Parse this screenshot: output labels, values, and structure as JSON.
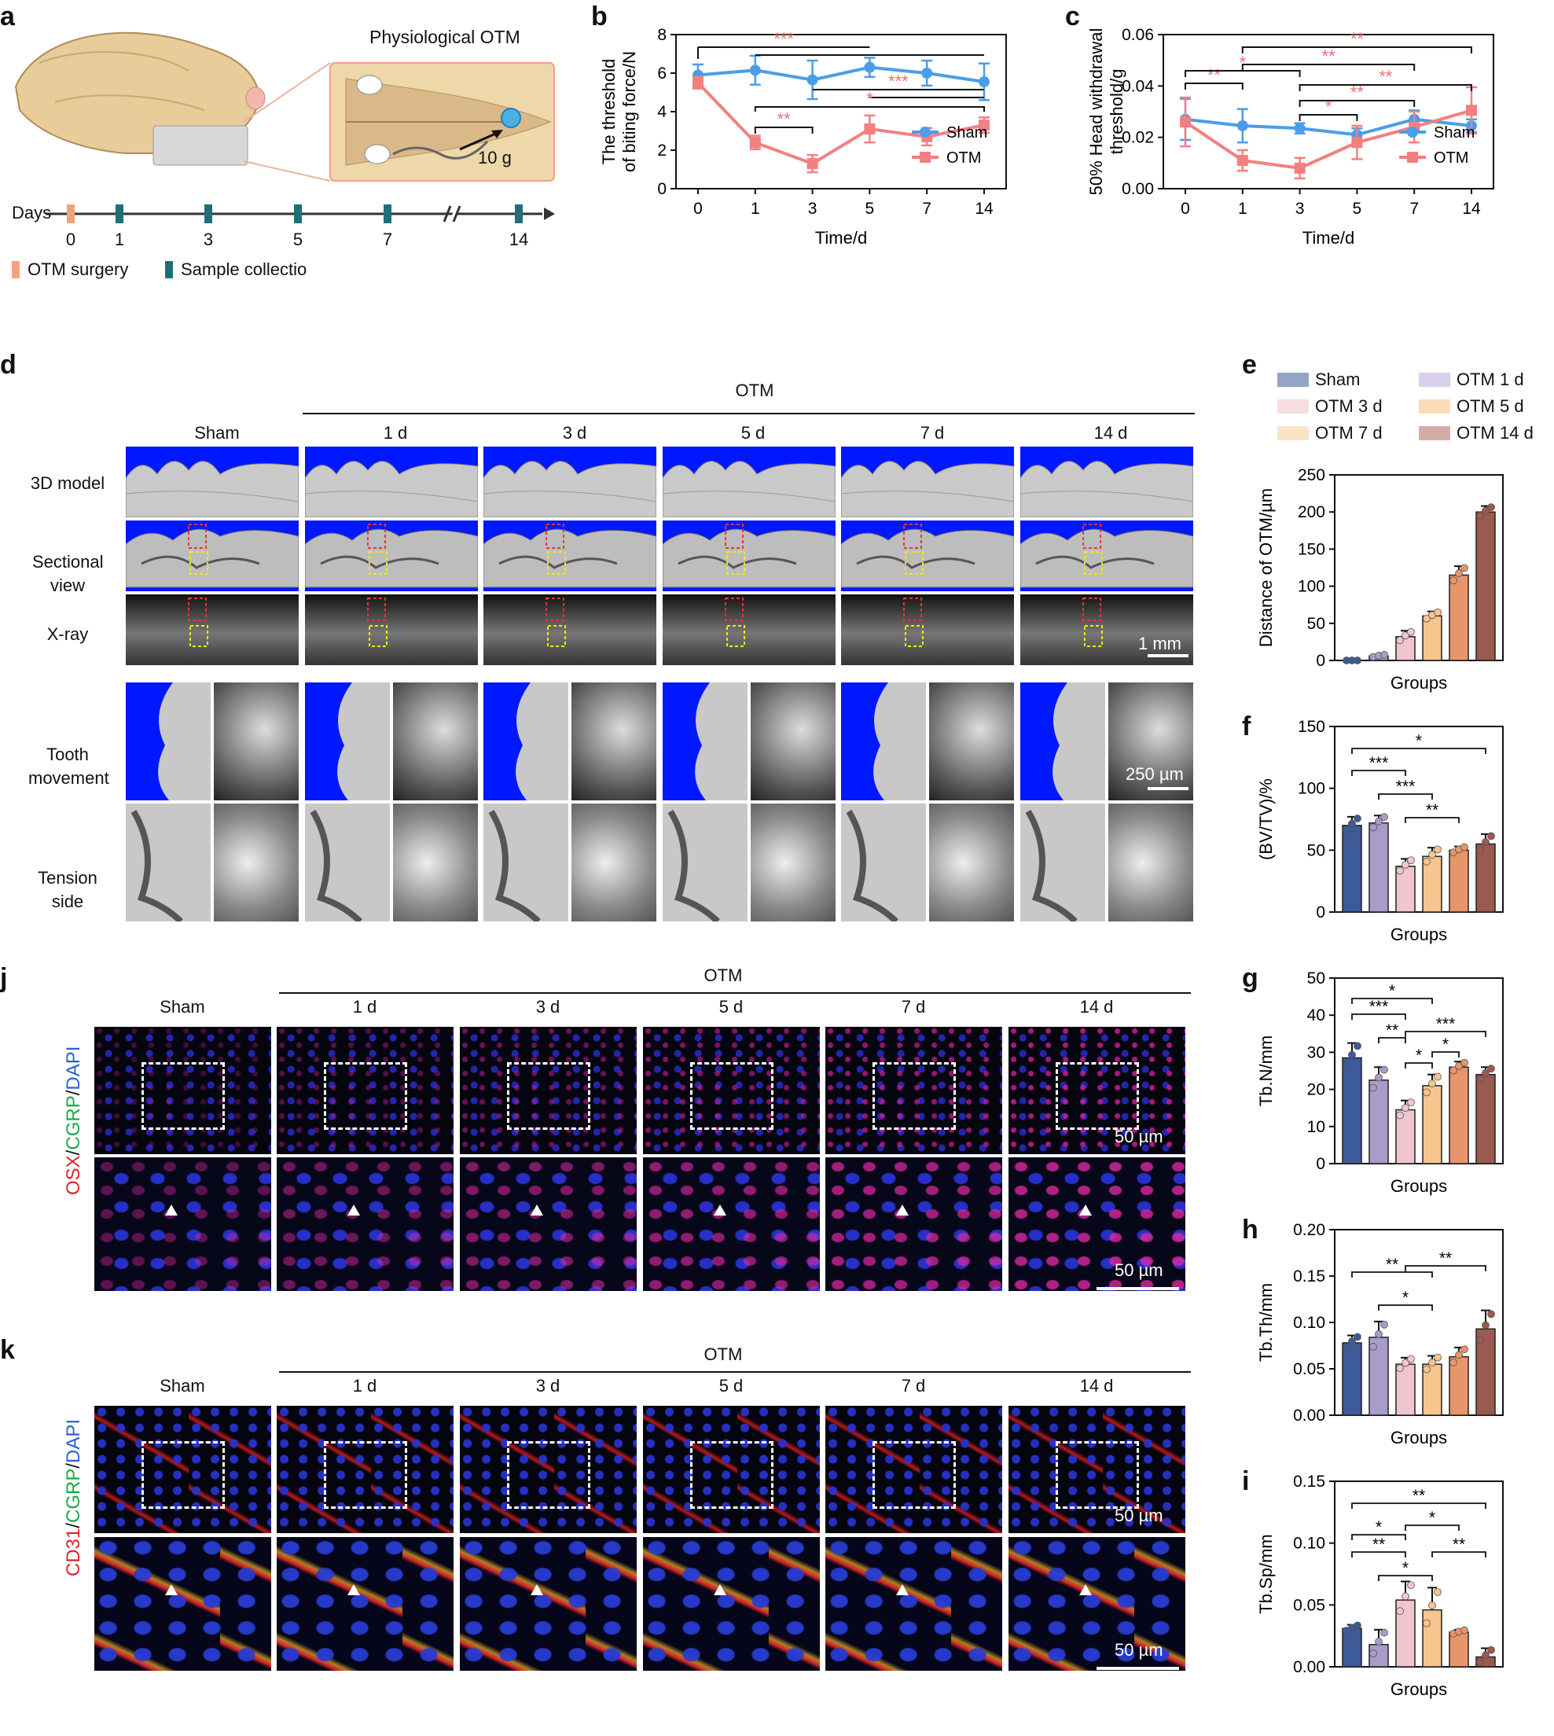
{
  "panel_labels": {
    "a": "a",
    "b": "b",
    "c": "c",
    "d": "d",
    "e": "e",
    "f": "f",
    "g": "g",
    "h": "h",
    "i": "i",
    "j": "j",
    "k": "k"
  },
  "panel_a": {
    "title": "Physiological OTM",
    "force": "10 g",
    "days_label": "Days",
    "days": [
      "0",
      "1",
      "3",
      "5",
      "7",
      "14"
    ],
    "legend_surgery": "OTM surgery",
    "legend_sample": "Sample collectio",
    "colors": {
      "surgery": "#f4a27a",
      "sample": "#1f6f7a"
    }
  },
  "colors": {
    "sham": "#4a9ee8",
    "otm": "#f28080",
    "otm_star": "#f07070"
  },
  "chart_data": [
    {
      "id": "b",
      "type": "line",
      "title": "",
      "xlabel": "Time/d",
      "ylabel": [
        "The threshold",
        "of biting force/N"
      ],
      "categories": [
        "0",
        "1",
        "3",
        "5",
        "7",
        "14"
      ],
      "yticks": [
        "0",
        "2",
        "4",
        "6",
        "8"
      ],
      "ylim": [
        0,
        8
      ],
      "series": [
        {
          "name": "Sham",
          "values": [
            5.9,
            6.15,
            5.65,
            6.3,
            6.0,
            5.55
          ],
          "err": [
            0.55,
            0.75,
            1.0,
            0.5,
            0.65,
            0.95
          ]
        },
        {
          "name": "OTM",
          "values": [
            5.5,
            2.4,
            1.3,
            3.1,
            2.7,
            3.3
          ],
          "err": [
            0.3,
            0.35,
            0.45,
            0.7,
            0.45,
            0.4
          ]
        }
      ],
      "stars": [
        "***",
        "***",
        "**",
        "*"
      ],
      "legend": [
        "Sham",
        "OTM"
      ]
    },
    {
      "id": "c",
      "type": "line",
      "xlabel": "Time/d",
      "ylabel": [
        "50% Head withdrawal",
        "threshold/g"
      ],
      "categories": [
        "0",
        "1",
        "3",
        "5",
        "7",
        "14"
      ],
      "yticks": [
        "0.00",
        "0.02",
        "0.04",
        "0.06"
      ],
      "ylim": [
        0,
        0.06
      ],
      "series": [
        {
          "name": "Sham",
          "values": [
            0.027,
            0.0245,
            0.0235,
            0.021,
            0.027,
            0.0245
          ],
          "err": [
            0.008,
            0.0065,
            0.002,
            0.0025,
            0.0035,
            0.0025
          ]
        },
        {
          "name": "OTM",
          "values": [
            0.026,
            0.011,
            0.008,
            0.018,
            0.024,
            0.0305
          ],
          "err": [
            0.0095,
            0.004,
            0.004,
            0.0065,
            0.006,
            0.009
          ]
        }
      ],
      "stars": [
        "**",
        "**",
        "*",
        "**",
        "**",
        "*",
        "**"
      ],
      "legend": [
        "Sham",
        "OTM"
      ]
    },
    {
      "id": "e",
      "type": "bar",
      "xlabel": "Groups",
      "ylabel": "Distance of OTM/µm",
      "categories": [
        "Sham",
        "OTM 1 d",
        "OTM 3 d",
        "OTM 5 d",
        "OTM 7 d",
        "OTM 14 d"
      ],
      "values": [
        0,
        6,
        32,
        60,
        115,
        200
      ],
      "err": [
        0,
        2,
        8,
        6,
        12,
        8
      ],
      "yticks": [
        "0",
        "50",
        "100",
        "150",
        "200",
        "250"
      ],
      "ylim": [
        0,
        250
      ]
    },
    {
      "id": "f",
      "type": "bar",
      "xlabel": "Groups",
      "ylabel": "(BV/TV)/%",
      "categories": [
        "Sham",
        "OTM 1 d",
        "OTM 3 d",
        "OTM 5 d",
        "OTM 7 d",
        "OTM 14 d"
      ],
      "values": [
        70,
        72,
        37,
        45,
        50,
        55
      ],
      "err": [
        7,
        6,
        6,
        7,
        3,
        8
      ],
      "yticks": [
        "0",
        "50",
        "100",
        "150"
      ],
      "ylim": [
        0,
        150
      ],
      "stars": [
        "*",
        "***",
        "***",
        "**"
      ]
    },
    {
      "id": "g",
      "type": "bar",
      "xlabel": "Groups",
      "ylabel": "Tb.N/mm",
      "categories": [
        "Sham",
        "OTM 1 d",
        "OTM 3 d",
        "OTM 5 d",
        "OTM 7 d",
        "OTM 14 d"
      ],
      "values": [
        28.5,
        22.5,
        14.5,
        21,
        26,
        24
      ],
      "err": [
        4,
        3.5,
        2.5,
        3,
        1.5,
        2
      ],
      "yticks": [
        "0",
        "10",
        "20",
        "30",
        "40",
        "50"
      ],
      "ylim": [
        0,
        50
      ],
      "stars": [
        "*",
        "***",
        "**",
        "***",
        "*",
        "*"
      ]
    },
    {
      "id": "h",
      "type": "bar",
      "xlabel": "Groups",
      "ylabel": "Tb.Th/mm",
      "categories": [
        "Sham",
        "OTM 1 d",
        "OTM 3 d",
        "OTM 5 d",
        "OTM 7 d",
        "OTM 14 d"
      ],
      "values": [
        0.078,
        0.084,
        0.055,
        0.055,
        0.063,
        0.093
      ],
      "err": [
        0.008,
        0.017,
        0.007,
        0.009,
        0.01,
        0.02
      ],
      "yticks": [
        "0.00",
        "0.05",
        "0.10",
        "0.15",
        "0.20"
      ],
      "ylim": [
        0,
        0.2
      ],
      "stars": [
        "**",
        "**",
        "*"
      ]
    },
    {
      "id": "i",
      "type": "bar",
      "xlabel": "Groups",
      "ylabel": "Tb.Sp/mm",
      "categories": [
        "Sham",
        "OTM 1 d",
        "OTM 3 d",
        "OTM 5 d",
        "OTM 7 d",
        "OTM 14 d"
      ],
      "values": [
        0.031,
        0.018,
        0.054,
        0.046,
        0.028,
        0.008
      ],
      "err": [
        0.003,
        0.012,
        0.015,
        0.018,
        0.002,
        0.007
      ],
      "yticks": [
        "0.00",
        "0.05",
        "0.10",
        "0.15"
      ],
      "ylim": [
        0,
        0.15
      ],
      "stars": [
        "**",
        "*",
        "*",
        "**",
        "**",
        "*"
      ]
    }
  ],
  "bar_colors": [
    "#3d5a99",
    "#a99cc8",
    "#f0c5cd",
    "#f8c58e",
    "#e8956a",
    "#9a5a4e"
  ],
  "legend_e": [
    "Sham",
    "OTM 1 d",
    "OTM 3 d",
    "OTM 5 d",
    "OTM 7 d",
    "OTM 14 d"
  ],
  "panel_d": {
    "otm": "OTM",
    "columns": [
      "Sham",
      "1 d",
      "3 d",
      "5 d",
      "7 d",
      "14 d"
    ],
    "rows": [
      "3D model",
      "Sectional view",
      "X-ray",
      "Tooth movement",
      "Tension side"
    ],
    "scale_1mm": "1 mm",
    "scale_250": "250 µm"
  },
  "panel_j": {
    "otm": "OTM",
    "columns": [
      "Sham",
      "1 d",
      "3 d",
      "5 d",
      "7 d",
      "14 d"
    ],
    "stain": [
      "OSX",
      "/",
      "CGRP",
      "/",
      "DAPI"
    ],
    "scale": "50 µm"
  },
  "panel_k": {
    "otm": "OTM",
    "columns": [
      "Sham",
      "1 d",
      "3 d",
      "5 d",
      "7 d",
      "14 d"
    ],
    "stain": [
      "CD31",
      "/",
      "CGRP",
      "/",
      "DAPI"
    ],
    "scale": "50 µm"
  }
}
